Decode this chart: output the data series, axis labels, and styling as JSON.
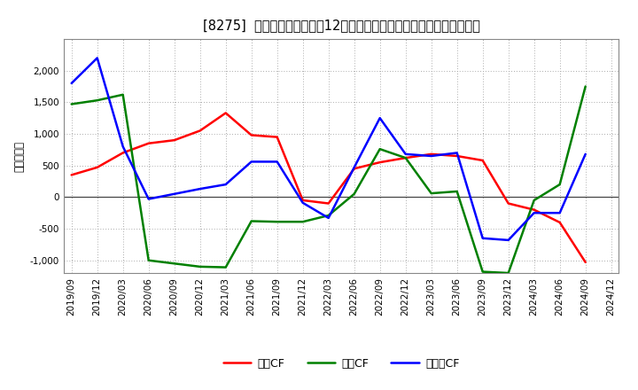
{
  "title": "[8275]  キャッシュフローの12か月移動合計の対前年同期増減額の推移",
  "ylabel": "（百万円）",
  "background_color": "#ffffff",
  "plot_background": "#ffffff",
  "x_labels": [
    "2019/09",
    "2019/12",
    "2020/03",
    "2020/06",
    "2020/09",
    "2020/12",
    "2021/03",
    "2021/06",
    "2021/09",
    "2021/12",
    "2022/03",
    "2022/06",
    "2022/09",
    "2022/12",
    "2023/03",
    "2023/06",
    "2023/09",
    "2023/12",
    "2024/03",
    "2024/06",
    "2024/09",
    "2024/12"
  ],
  "sales_cf": [
    350,
    470,
    700,
    850,
    900,
    1050,
    1330,
    980,
    950,
    -50,
    -100,
    450,
    550,
    620,
    680,
    650,
    580,
    -100,
    -200,
    -400,
    -1030,
    null
  ],
  "invest_cf": [
    1470,
    1530,
    1620,
    -1000,
    -1050,
    -1100,
    -1110,
    -380,
    -390,
    -390,
    -290,
    50,
    760,
    620,
    60,
    90,
    -1180,
    -1200,
    -50,
    200,
    1750,
    null
  ],
  "free_cf": [
    1800,
    2200,
    800,
    -30,
    50,
    130,
    200,
    560,
    560,
    -90,
    -330,
    470,
    1250,
    680,
    650,
    700,
    -650,
    -680,
    -250,
    -250,
    680,
    null
  ],
  "sales_cf_color": "#ff0000",
  "invest_cf_color": "#008000",
  "free_cf_color": "#0000ff",
  "ylim": [
    -1200,
    2500
  ],
  "yticks": [
    -1000,
    -500,
    0,
    500,
    1000,
    1500,
    2000
  ],
  "legend_labels": [
    "営業CF",
    "投資CF",
    "フリーCF"
  ]
}
